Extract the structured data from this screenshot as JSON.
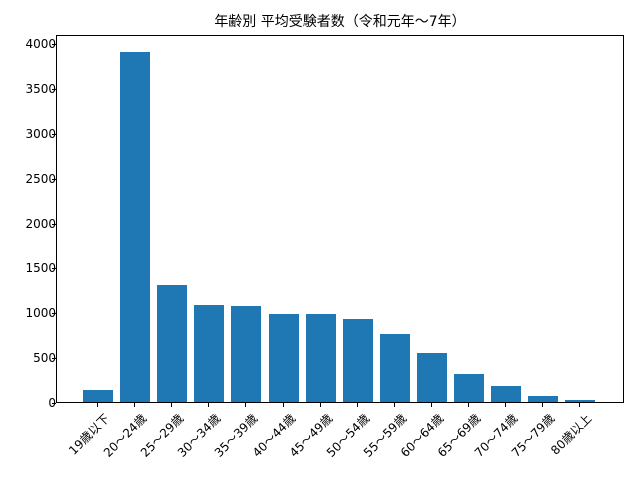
{
  "chart_data": {
    "type": "bar",
    "title": "年齢別 平均受験者数（令和元年〜7年）",
    "xlabel": "",
    "ylabel": "",
    "ylim": [
      0,
      4100
    ],
    "yticks": [
      0,
      500,
      1000,
      1500,
      2000,
      2500,
      3000,
      3500,
      4000
    ],
    "grid": false,
    "legend": null,
    "color": "#1f77b4",
    "categories": [
      "19歳以下",
      "20〜24歳",
      "25〜29歳",
      "30〜34歳",
      "35〜39歳",
      "40〜44歳",
      "45〜49歳",
      "50〜54歳",
      "55〜59歳",
      "60〜64歳",
      "65〜69歳",
      "70〜74歳",
      "75〜79歳",
      "80歳以上"
    ],
    "values": [
      130,
      3900,
      1300,
      1080,
      1070,
      980,
      980,
      925,
      760,
      545,
      310,
      180,
      70,
      25
    ]
  }
}
